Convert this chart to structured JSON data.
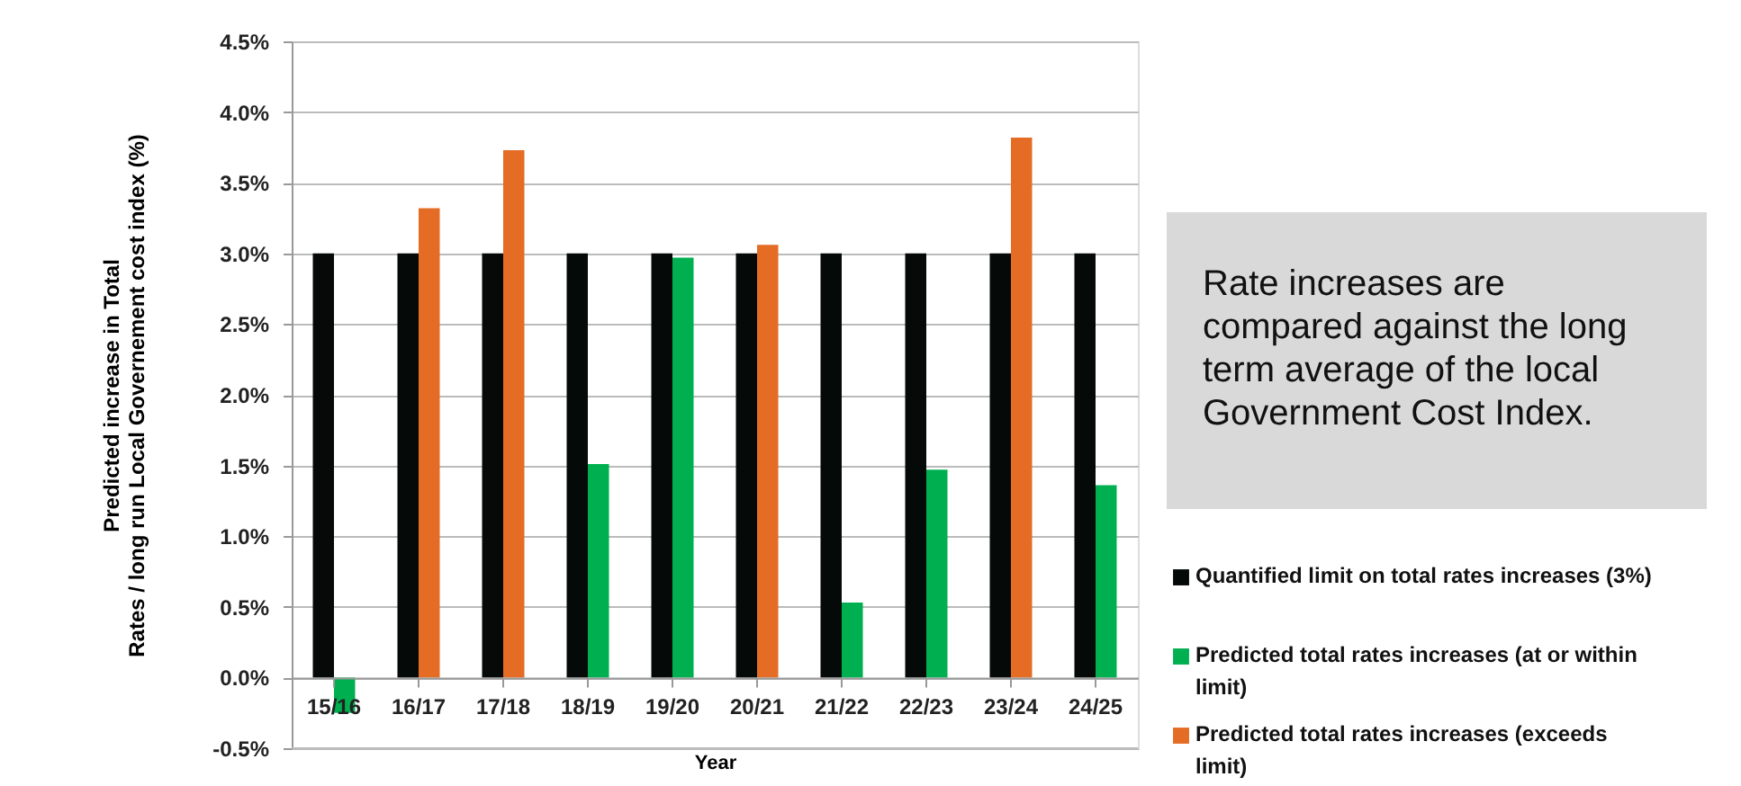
{
  "chart_data": {
    "type": "bar",
    "xlabel": "Year",
    "ylabel": "Predicted increase in Total\nRates / long run Local Governement cost index (%)",
    "categories": [
      "15/16",
      "16/17",
      "17/18",
      "18/19",
      "19/20",
      "20/21",
      "21/22",
      "22/23",
      "23/24",
      "24/25"
    ],
    "series": [
      {
        "name": "Quantified limit on total rates increases (3%)",
        "color": "#050a08",
        "values": [
          3.0,
          3.0,
          3.0,
          3.0,
          3.0,
          3.0,
          3.0,
          3.0,
          3.0,
          3.0
        ]
      },
      {
        "name": "Predicted total rates increases (at or within limit)",
        "color": "#00b050",
        "values": [
          -0.25,
          null,
          null,
          1.51,
          2.97,
          null,
          0.53,
          1.47,
          null,
          1.36
        ]
      },
      {
        "name": "Predicted total rates increases (exceeds limit)",
        "color": "#e46c24",
        "values": [
          null,
          3.32,
          3.73,
          null,
          null,
          3.06,
          null,
          null,
          3.82,
          null
        ]
      }
    ],
    "ylim": [
      -0.5,
      4.5
    ],
    "yticks": [
      {
        "value": -0.5,
        "label": "-0.5%"
      },
      {
        "value": 0,
        "label": "0.0%"
      },
      {
        "value": 0.5,
        "label": "0.5%"
      },
      {
        "value": 1,
        "label": "1.0%"
      },
      {
        "value": 1.5,
        "label": "1.5%"
      },
      {
        "value": 2,
        "label": "2.0%"
      },
      {
        "value": 2.5,
        "label": "2.5%"
      },
      {
        "value": 3,
        "label": "3.0%"
      },
      {
        "value": 3.5,
        "label": "3.5%"
      },
      {
        "value": 4,
        "label": "4.0%"
      },
      {
        "value": 4.5,
        "label": "4.5%"
      }
    ],
    "grid": "y",
    "legend": "right",
    "annotations": [
      "Rate increases are compared against the long term average of the local Government Cost Index."
    ]
  }
}
